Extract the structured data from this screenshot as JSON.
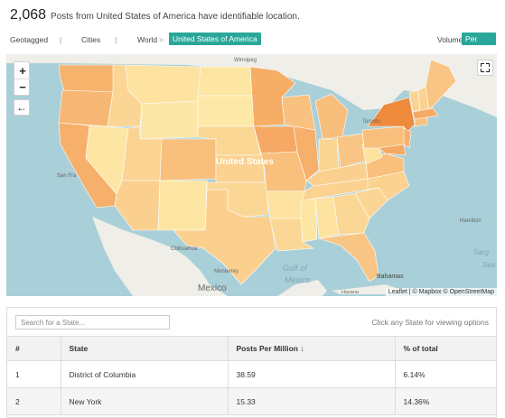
{
  "header": {
    "count": "2,068",
    "description": "Posts from United States of America have identifiable location."
  },
  "nav": {
    "geotagged": "Geotagged",
    "sep1": "|",
    "cities": "Cities",
    "sep2": "|",
    "world": "World",
    "chevron": ">",
    "active": "United States of America",
    "volume": "Volume",
    "per_capita": "Per Capita"
  },
  "map": {
    "zoom_in": "+",
    "zoom_out": "−",
    "back": "←",
    "attribution": "Leaflet | © Mapbox © OpenStreetMap",
    "labels": {
      "country": "United States",
      "mexico": "Mexico",
      "winnipeg": "Winnipeg",
      "toronto": "Toronto",
      "san_francisco": "San Fra",
      "chihuahua": "Chihuahua",
      "monterrey": "Monterrey",
      "gulf1": "Gulf of",
      "gulf2": "Mexico",
      "bahamas": "Bahamas",
      "havana": "Havana",
      "hamilton": "Hamilton",
      "sargasso": "Sarg",
      "sea": "Sea"
    },
    "colors": {
      "water": "#a9cfd8",
      "land": "#efeee8",
      "low": "#fde9a6",
      "mid": "#f9c98a",
      "high": "#f3a35a",
      "top": "#ee8a3b"
    }
  },
  "table": {
    "search_placeholder": "Search for a State...",
    "hint": "Click any State for viewing options",
    "headers": {
      "rank": "#",
      "state": "State",
      "posts": "Posts Per Million ↓",
      "pct": "% of total"
    },
    "rows": [
      {
        "rank": "1",
        "state": "District of Columbia",
        "posts": "38.59",
        "pct": "6.14%"
      },
      {
        "rank": "2",
        "state": "New York",
        "posts": "15.33",
        "pct": "14.36%"
      }
    ]
  }
}
